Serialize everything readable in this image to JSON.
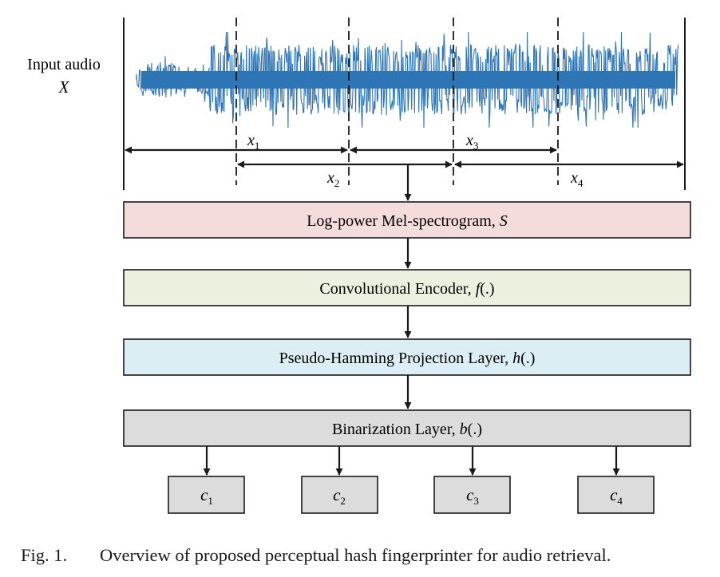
{
  "input": {
    "label": "Input audio",
    "symbol": "X"
  },
  "segments": [
    {
      "base": "x",
      "sub": "1"
    },
    {
      "base": "x",
      "sub": "2"
    },
    {
      "base": "x",
      "sub": "3"
    },
    {
      "base": "x",
      "sub": "4"
    }
  ],
  "layers": [
    {
      "text": "Log-power Mel-spectrogram, ",
      "symbol": "S",
      "fill": "#f4dcdc"
    },
    {
      "text": "Convolutional Encoder, ",
      "symbol": "f",
      "suffix": "(.)",
      "fill": "#ebf1de"
    },
    {
      "text": "Pseudo-Hamming Projection Layer, ",
      "symbol": "h",
      "suffix": "(.)",
      "fill": "#dbeef4"
    },
    {
      "text": "Binarization Layer, ",
      "symbol": "b",
      "suffix": "(.)",
      "fill": "#dcdcdc"
    }
  ],
  "outputs": [
    {
      "base": "c",
      "sub": "1"
    },
    {
      "base": "c",
      "sub": "2"
    },
    {
      "base": "c",
      "sub": "3"
    },
    {
      "base": "c",
      "sub": "4"
    }
  ],
  "colors": {
    "waveform": "#2e75b6",
    "stroke": "#1a1a1a"
  },
  "caption": {
    "number": "Fig. 1.",
    "text": "Overview of proposed perceptual hash fingerprinter for audio retrieval."
  }
}
